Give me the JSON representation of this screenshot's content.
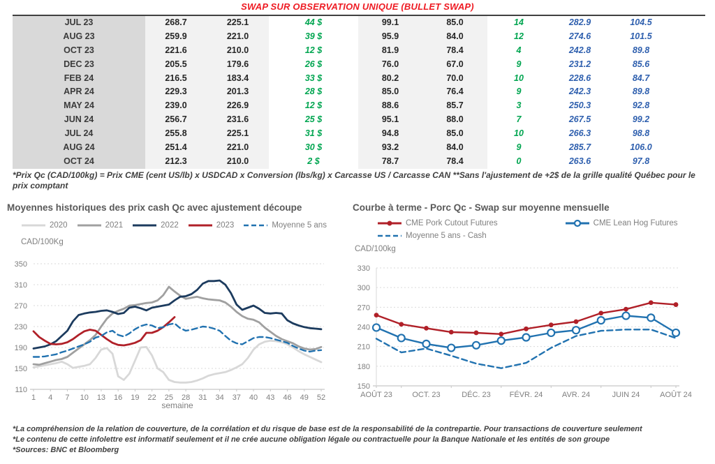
{
  "title": "SWAP SUR OBSERVATION UNIQUE (BULLET SWAP)",
  "colors": {
    "title_red": "#ee1b23",
    "table_green": "#00a550",
    "table_blue": "#2e5fae",
    "series_2020": "#d8d8d8",
    "series_2021": "#a0a0a0",
    "series_2022": "#1c3b5e",
    "series_2023": "#b02028",
    "series_blue": "#2172b0",
    "gridline": "#d9d9d9"
  },
  "table": {
    "rows": [
      [
        "JUL 23",
        "268.7",
        "225.1",
        "44 $",
        "99.1",
        "85.0",
        "14",
        "282.9",
        "104.5"
      ],
      [
        "AUG 23",
        "259.9",
        "221.0",
        "39 $",
        "95.9",
        "84.0",
        "12",
        "274.6",
        "101.5"
      ],
      [
        "OCT 23",
        "221.6",
        "210.0",
        "12 $",
        "81.9",
        "78.4",
        "4",
        "242.8",
        "89.8"
      ],
      [
        "DEC 23",
        "205.5",
        "179.6",
        "26 $",
        "76.0",
        "67.0",
        "9",
        "231.2",
        "85.6"
      ],
      [
        "FEB 24",
        "216.5",
        "183.4",
        "33 $",
        "80.2",
        "70.0",
        "10",
        "228.6",
        "84.7"
      ],
      [
        "APR 24",
        "229.3",
        "201.3",
        "28 $",
        "85.0",
        "76.4",
        "9",
        "242.3",
        "89.8"
      ],
      [
        "MAY 24",
        "239.0",
        "226.9",
        "12 $",
        "88.6",
        "85.7",
        "3",
        "250.3",
        "92.8"
      ],
      [
        "JUN 24",
        "256.7",
        "231.6",
        "25 $",
        "95.1",
        "88.0",
        "7",
        "267.5",
        "99.2"
      ],
      [
        "JUL 24",
        "255.8",
        "225.1",
        "31 $",
        "94.8",
        "85.0",
        "10",
        "266.3",
        "98.8"
      ],
      [
        "AUG 24",
        "251.4",
        "221.0",
        "30 $",
        "93.2",
        "84.0",
        "9",
        "285.7",
        "106.0"
      ],
      [
        "OCT 24",
        "212.3",
        "210.0",
        "2 $",
        "78.7",
        "78.4",
        "0",
        "263.6",
        "97.8"
      ]
    ]
  },
  "table_note": "*Prix Qc (CAD/100kg) = Prix CME (cent US/lb) x USDCAD x Conversion (lbs/kg) x Carcasse US / Carcasse CAN **Sans l'ajustement de +2$ de la grille qualité Québec pour le prix comptant",
  "chart_data": [
    {
      "type": "line",
      "title": "Moyennes historiques des prix cash Qc avec ajustement découpe",
      "ylabel": "CAD/100Kg",
      "xlabel": "semaine",
      "ylim": [
        110,
        350
      ],
      "yticks": [
        110,
        150,
        190,
        230,
        270,
        310,
        350
      ],
      "grid": true,
      "legend_position": "top",
      "x": [
        1,
        2,
        3,
        4,
        5,
        6,
        7,
        8,
        9,
        10,
        11,
        12,
        13,
        14,
        15,
        16,
        17,
        18,
        19,
        20,
        21,
        22,
        23,
        24,
        25,
        26,
        27,
        28,
        29,
        30,
        31,
        32,
        33,
        34,
        35,
        36,
        37,
        38,
        39,
        40,
        41,
        42,
        43,
        44,
        45,
        46,
        47,
        48,
        49,
        50,
        51,
        52
      ],
      "xticks": [
        1,
        4,
        7,
        10,
        13,
        16,
        19,
        22,
        25,
        28,
        31,
        34,
        37,
        40,
        43,
        46,
        49,
        52
      ],
      "series": [
        {
          "name": "2020",
          "color": "#d8d8d8",
          "values": [
            152,
            154,
            156,
            158,
            160,
            163,
            158,
            151,
            153,
            155,
            158,
            170,
            186,
            189,
            178,
            135,
            128,
            140,
            165,
            190,
            191,
            175,
            150,
            143,
            128,
            124,
            123,
            123,
            124,
            127,
            131,
            136,
            139,
            141,
            143,
            147,
            152,
            158,
            170,
            186,
            196,
            201,
            203,
            202,
            200,
            196,
            190,
            183,
            177,
            172,
            167,
            162
          ]
        },
        {
          "name": "2021",
          "color": "#a0a0a0",
          "values": [
            158,
            157,
            160,
            163,
            166,
            168,
            172,
            180,
            188,
            196,
            204,
            214,
            230,
            245,
            255,
            260,
            264,
            270,
            271,
            273,
            275,
            276,
            280,
            290,
            306,
            297,
            289,
            283,
            285,
            287,
            284,
            282,
            281,
            280,
            276,
            268,
            258,
            250,
            245,
            243,
            238,
            228,
            220,
            212,
            206,
            202,
            198,
            192,
            188,
            186,
            187,
            191
          ]
        },
        {
          "name": "2022",
          "color": "#1c3b5e",
          "values": [
            188,
            190,
            192,
            196,
            202,
            212,
            222,
            240,
            252,
            255,
            257,
            258,
            260,
            261,
            258,
            254,
            256,
            266,
            268,
            265,
            261,
            266,
            268,
            270,
            272,
            280,
            287,
            288,
            292,
            300,
            312,
            317,
            317,
            318,
            310,
            294,
            272,
            262,
            266,
            270,
            264,
            256,
            255,
            256,
            255,
            242,
            236,
            232,
            229,
            227,
            226,
            225
          ]
        },
        {
          "name": "2023",
          "color": "#b02028",
          "values": [
            221,
            210,
            203,
            197,
            196,
            197,
            200,
            206,
            214,
            221,
            224,
            222,
            214,
            206,
            199,
            195,
            194,
            196,
            199,
            204,
            218,
            218,
            222,
            229,
            238,
            248,
            null,
            null,
            null,
            null,
            null,
            null,
            null,
            null,
            null,
            null,
            null,
            null,
            null,
            null,
            null,
            null,
            null,
            null,
            null,
            null,
            null,
            null,
            null,
            null,
            null,
            null
          ]
        },
        {
          "name": "Moyenne 5 ans",
          "color": "#2172b0",
          "dash": "8,5",
          "values": [
            172,
            172,
            173,
            175,
            177,
            181,
            184,
            188,
            192,
            196,
            201,
            209,
            212,
            219,
            222,
            214,
            211,
            217,
            225,
            231,
            234,
            232,
            227,
            229,
            234,
            236,
            227,
            222,
            224,
            227,
            230,
            229,
            226,
            222,
            212,
            203,
            198,
            196,
            202,
            208,
            210,
            210,
            208,
            205,
            202,
            199,
            193,
            188,
            184,
            182,
            184,
            185
          ]
        }
      ]
    },
    {
      "type": "line",
      "title": "Courbe à terme - Porc Qc - Swap sur moyenne mensuelle",
      "ylabel": "CAD/100kg",
      "ylim": [
        150,
        330
      ],
      "yticks": [
        150,
        180,
        210,
        240,
        270,
        300,
        330
      ],
      "grid": true,
      "legend_position": "top",
      "categories": [
        "AOÛT 23",
        "SEPT. 23",
        "OCT. 23",
        "NOV. 23",
        "DÉC. 23",
        "JANV. 24",
        "FÉVR. 24",
        "MARS 24",
        "AVR. 24",
        "MAI 24",
        "JUIN 24",
        "JUIL. 24",
        "AOÛT 24"
      ],
      "xtick_idx": [
        0,
        2,
        4,
        6,
        8,
        10,
        12
      ],
      "xtick_labels": [
        "AOÛT 23",
        "OCT. 23",
        "DÉC. 23",
        "FÉVR. 24",
        "AVR. 24",
        "JUIN 24",
        "AOÛT 24"
      ],
      "series": [
        {
          "name": "CME Pork Cutout Futures",
          "color": "#b02028",
          "marker": "dot",
          "values": [
            258,
            244,
            238,
            232,
            231,
            229,
            237,
            243,
            248,
            261,
            267,
            277,
            274
          ]
        },
        {
          "name": "CME Lean Hog Futures",
          "color": "#2172b0",
          "marker": "open",
          "values": [
            239,
            223,
            214,
            208,
            212,
            219,
            224,
            231,
            235,
            250,
            257,
            254,
            231
          ]
        },
        {
          "name": "Moyenne 5 ans - Cash",
          "color": "#2172b0",
          "dash": "8,5",
          "values": [
            222,
            201,
            207,
            196,
            184,
            177,
            185,
            208,
            226,
            234,
            236,
            236,
            223
          ]
        }
      ]
    }
  ],
  "footnotes": {
    "line1": "*La compréhension de la relation de couverture, de la corrélation et du risque de base est de la responsabilité de la contrepartie. Pour transactions de couverture seulement",
    "line2": "*Le contenu de cette infolettre est informatif seulement et il ne crée aucune obligation légale ou contractuelle pour la Banque Nationale et les entités de son groupe",
    "line3": "*Sources: BNC et Bloomberg"
  }
}
